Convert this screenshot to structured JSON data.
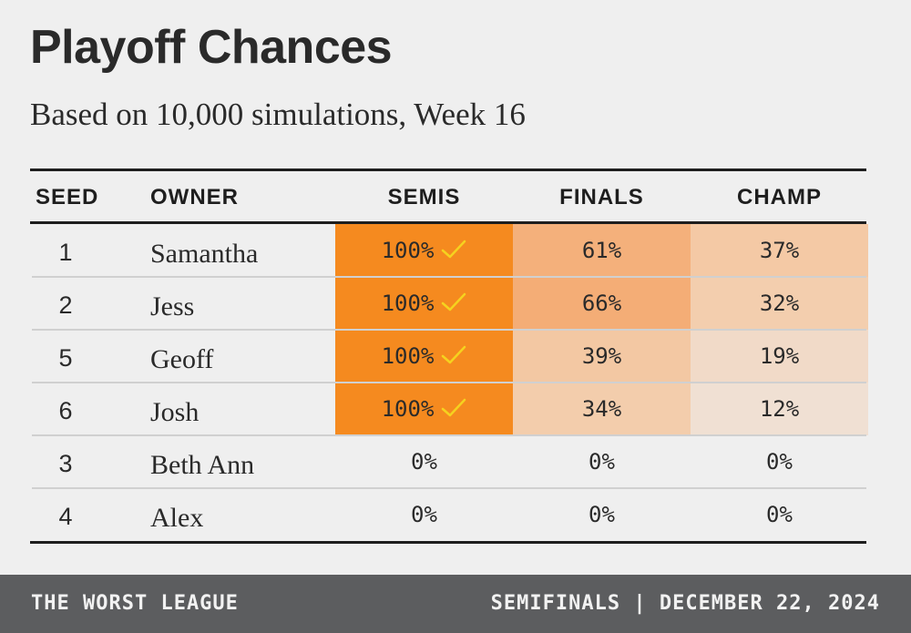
{
  "title": "Playoff Chances",
  "subtitle": "Based on 10,000 simulations, Week 16",
  "columns": {
    "seed": "SEED",
    "owner": "OWNER",
    "semis": "SEMIS",
    "finals": "FINALS",
    "champ": "CHAMP"
  },
  "rows": [
    {
      "seed": "1",
      "owner": "Samantha",
      "semis": "100%",
      "semis_check": true,
      "finals": "61%",
      "champ": "37%",
      "semis_color": "#f58a1f",
      "finals_color": "#f4b07b",
      "champ_color": "#f4c9a5"
    },
    {
      "seed": "2",
      "owner": "Jess",
      "semis": "100%",
      "semis_check": true,
      "finals": "66%",
      "champ": "32%",
      "semis_color": "#f58a1f",
      "finals_color": "#f4ad76",
      "champ_color": "#f3ceae"
    },
    {
      "seed": "5",
      "owner": "Geoff",
      "semis": "100%",
      "semis_check": true,
      "finals": "39%",
      "champ": "19%",
      "semis_color": "#f58a1f",
      "finals_color": "#f3c8a3",
      "champ_color": "#f1dac8"
    },
    {
      "seed": "6",
      "owner": "Josh",
      "semis": "100%",
      "semis_check": true,
      "finals": "34%",
      "champ": "12%",
      "semis_color": "#f58a1f",
      "finals_color": "#f3cdac",
      "champ_color": "#f0e0d3"
    },
    {
      "seed": "3",
      "owner": "Beth Ann",
      "semis": "0%",
      "semis_check": false,
      "finals": "0%",
      "champ": "0%",
      "semis_color": "transparent",
      "finals_color": "transparent",
      "champ_color": "transparent"
    },
    {
      "seed": "4",
      "owner": "Alex",
      "semis": "0%",
      "semis_check": false,
      "finals": "0%",
      "champ": "0%",
      "semis_color": "transparent",
      "finals_color": "transparent",
      "champ_color": "transparent"
    }
  ],
  "check_icon": "checkmark-icon",
  "check_color": "#f5d21f",
  "footer": {
    "league": "THE WORST LEAGUE",
    "round_date": "SEMIFINALS | DECEMBER 22, 2024"
  }
}
